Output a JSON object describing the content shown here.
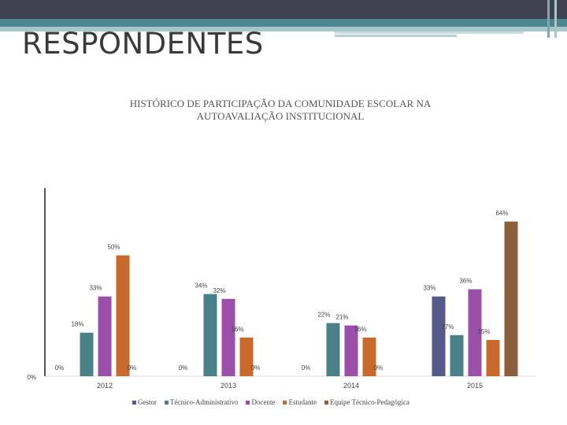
{
  "slide": {
    "title": "RESPONDENTES"
  },
  "colors": {
    "header_dark": "#404252",
    "header_teal": "#4e8790",
    "header_light": "#a9c7cb"
  },
  "chart_data": {
    "type": "bar",
    "title": "HISTÓRICO DE PARTICIPAÇÃO DA COMUNIDADE ESCOLAR NA AUTOAVALIAÇÃO INSTITUCIONAL",
    "xlabel": "",
    "ylabel": "",
    "ylim": [
      0,
      0.7
    ],
    "grid": false,
    "legend_position": "bottom",
    "categories": [
      "2012",
      "2013",
      "2014",
      "2015"
    ],
    "series": [
      {
        "name": "Gestor",
        "color": "#555a8a",
        "values": [
          0,
          0,
          0,
          0.33
        ],
        "labels": [
          "0%",
          "0%",
          "0%",
          "33%"
        ]
      },
      {
        "name": "Técnico-Administrativo",
        "color": "#4a8087",
        "values": [
          0.18,
          0.34,
          0.22,
          0.17
        ],
        "labels": [
          "18%",
          "34%",
          "22%",
          "17%"
        ]
      },
      {
        "name": "Docente",
        "color": "#9b4fa8",
        "values": [
          0.33,
          0.32,
          0.21,
          0.36
        ],
        "labels": [
          "33%",
          "32%",
          "21%",
          "36%"
        ]
      },
      {
        "name": "Estudante",
        "color": "#c86a2c",
        "values": [
          0.5,
          0.16,
          0.16,
          0.15
        ],
        "labels": [
          "50%",
          "16%",
          "16%",
          "15%"
        ]
      },
      {
        "name": "Equipe Técnico-Pedagógica",
        "color": "#8c5e3c",
        "values": [
          0,
          0,
          0,
          0.64
        ],
        "labels": [
          "0%",
          "0%",
          "0%",
          "64%"
        ]
      }
    ],
    "axis_tick_label": "0%"
  }
}
